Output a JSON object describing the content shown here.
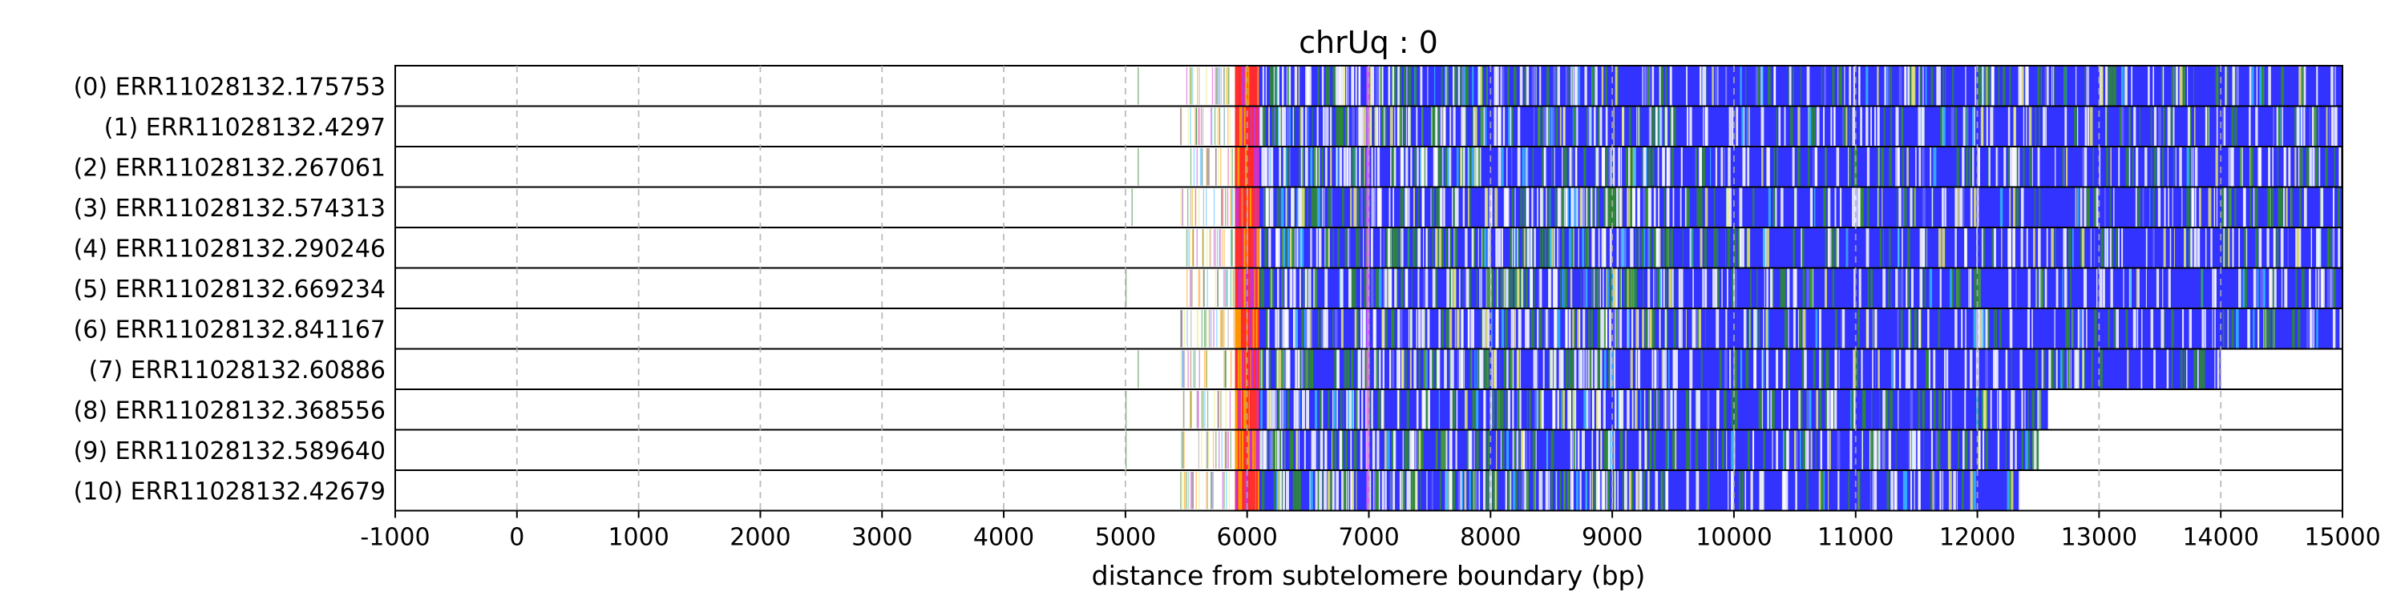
{
  "chart_data": {
    "type": "heatmap",
    "title": "chrUq : 0",
    "xlabel": "distance from subtelomere boundary (bp)",
    "ylabel": "",
    "xlim": [
      -1000,
      15000
    ],
    "xticks": [
      "-1000",
      "0",
      "1000",
      "2000",
      "3000",
      "4000",
      "5000",
      "6000",
      "7000",
      "8000",
      "9000",
      "10000",
      "11000",
      "12000",
      "13000",
      "14000",
      "15000"
    ],
    "grid": "vertical dashed at each x tick",
    "rows": [
      {
        "label": "(0) ERR11028132.175753",
        "start": 5100,
        "end": 15000
      },
      {
        "label": "(1) ERR11028132.4297",
        "start": 5450,
        "end": 15000
      },
      {
        "label": "(2) ERR11028132.267061",
        "start": 5100,
        "end": 15000
      },
      {
        "label": "(3) ERR11028132.574313",
        "start": 5050,
        "end": 15000
      },
      {
        "label": "(4) ERR11028132.290246",
        "start": 5500,
        "end": 15000
      },
      {
        "label": "(5) ERR11028132.669234",
        "start": 5000,
        "end": 15000
      },
      {
        "label": "(6) ERR11028132.841167",
        "start": 5450,
        "end": 15000
      },
      {
        "label": "(7) ERR11028132.60886",
        "start": 5100,
        "end": 14000
      },
      {
        "label": "(8) ERR11028132.368556",
        "start": 5000,
        "end": 12580
      },
      {
        "label": "(9) ERR11028132.589640",
        "start": 5000,
        "end": 12500
      },
      {
        "label": "(10) ERR11028132.42679",
        "start": 5450,
        "end": 12350
      }
    ],
    "regions": [
      {
        "name": "dense colored repeat region",
        "from": 5900,
        "to": 6100,
        "colors": [
          "#ff2a2a",
          "#cc33cc",
          "#ff9900"
        ]
      },
      {
        "name": "pink marker",
        "from": 6980,
        "to": 7000,
        "colors": [
          "#ff66ff"
        ]
      },
      {
        "name": "telomeric repeat",
        "from": 6100,
        "to": 15000,
        "colors": [
          "#3333ff"
        ]
      }
    ],
    "colors": {
      "main": "#3333ff",
      "accent_green": "#2e8b2e",
      "accent_yellow": "#e8e870",
      "accent_white": "#ffffff",
      "accent_cyan": "#33bbff",
      "accent_red": "#ff3030",
      "accent_purple": "#cc33cc",
      "accent_orange": "#ff9900",
      "accent_pink": "#ff66ff"
    }
  }
}
